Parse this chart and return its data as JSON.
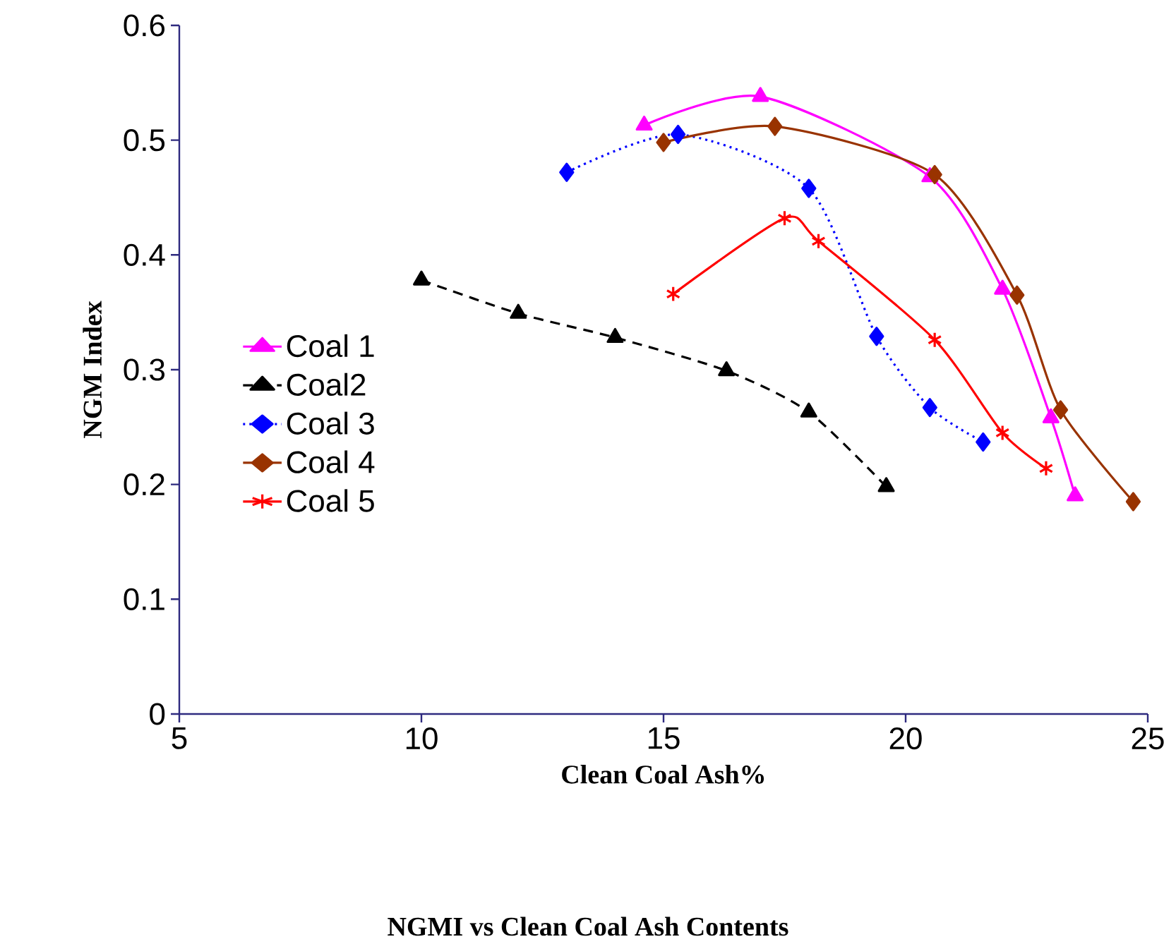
{
  "chart_data": {
    "type": "line",
    "title": "NGMI vs Clean Coal Ash Contents",
    "xlabel": "Clean Coal Ash%",
    "ylabel": "NGM Index",
    "xlim": [
      5,
      25
    ],
    "ylim": [
      0,
      0.6
    ],
    "xticks": [
      5,
      10,
      15,
      20,
      25
    ],
    "yticks": [
      0,
      0.1,
      0.2,
      0.3,
      0.4,
      0.5,
      0.6
    ],
    "legend": "left",
    "grid": false,
    "series": [
      {
        "name": "Coal 1",
        "color": "#ff00ff",
        "marker": "triangle",
        "line_style": "solid",
        "x": [
          14.6,
          17.0,
          20.5,
          22.0,
          23.0,
          23.5
        ],
        "values": [
          0.513,
          0.538,
          0.468,
          0.37,
          0.258,
          0.19
        ]
      },
      {
        "name": "Coal2",
        "color": "#000000",
        "marker": "triangle",
        "line_style": "dashed",
        "x": [
          10,
          12,
          14,
          16.3,
          18,
          19.6
        ],
        "values": [
          0.378,
          0.349,
          0.328,
          0.299,
          0.263,
          0.198
        ]
      },
      {
        "name": "Coal 3",
        "color": "#0000ff",
        "marker": "diamond",
        "line_style": "dotted",
        "x": [
          13,
          15.3,
          18,
          19.4,
          20.5,
          21.6
        ],
        "values": [
          0.472,
          0.505,
          0.458,
          0.329,
          0.267,
          0.237
        ]
      },
      {
        "name": "Coal 4",
        "color": "#993300",
        "marker": "diamond",
        "line_style": "solid",
        "x": [
          15,
          17.3,
          20.6,
          22.3,
          23.2,
          24.7
        ],
        "values": [
          0.498,
          0.512,
          0.47,
          0.365,
          0.265,
          0.185
        ]
      },
      {
        "name": "Coal 5",
        "color": "#ff0000",
        "marker": "cross",
        "line_style": "solid",
        "x": [
          15.2,
          17.5,
          18.2,
          20.6,
          22.0,
          22.9
        ],
        "values": [
          0.366,
          0.432,
          0.412,
          0.326,
          0.245,
          0.214
        ]
      }
    ]
  }
}
